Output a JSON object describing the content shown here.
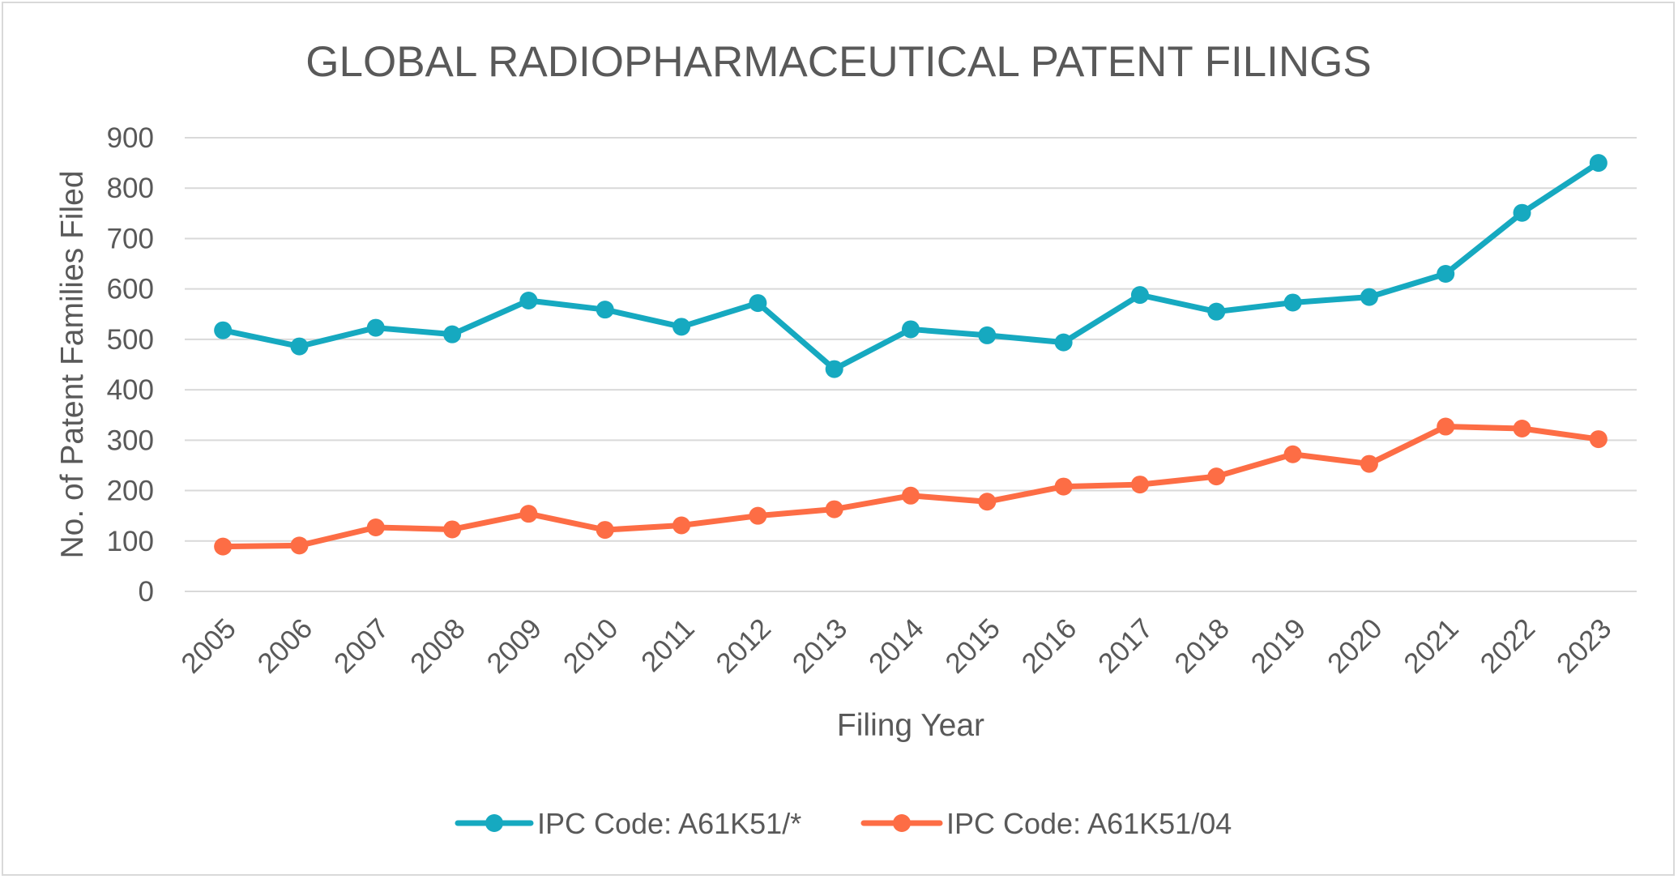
{
  "chart_data": {
    "type": "line",
    "title": "GLOBAL RADIOPHARMACEUTICAL PATENT FILINGS",
    "xlabel": "Filing Year",
    "ylabel": "No. of Patent Families Filed",
    "ylim": [
      0,
      900
    ],
    "yticks": [
      "0",
      "100",
      "200",
      "300",
      "400",
      "500",
      "600",
      "700",
      "800",
      "900"
    ],
    "grid": true,
    "legend_position": "bottom",
    "categories": [
      "2005",
      "2006",
      "2007",
      "2008",
      "2009",
      "2010",
      "2011",
      "2012",
      "2013",
      "2014",
      "2015",
      "2016",
      "2017",
      "2018",
      "2019",
      "2020",
      "2021",
      "2022",
      "2023"
    ],
    "series": [
      {
        "name": "IPC Code: A61K51/*",
        "color": "#16a9c0",
        "values": [
          518,
          486,
          523,
          510,
          577,
          559,
          525,
          572,
          441,
          520,
          508,
          494,
          588,
          555,
          573,
          584,
          630,
          751,
          850
        ]
      },
      {
        "name": "IPC Code: A61K51/04",
        "color": "#fd6d45",
        "values": [
          89,
          91,
          127,
          123,
          154,
          122,
          131,
          150,
          163,
          190,
          178,
          208,
          212,
          228,
          272,
          253,
          327,
          323,
          302
        ]
      }
    ]
  }
}
